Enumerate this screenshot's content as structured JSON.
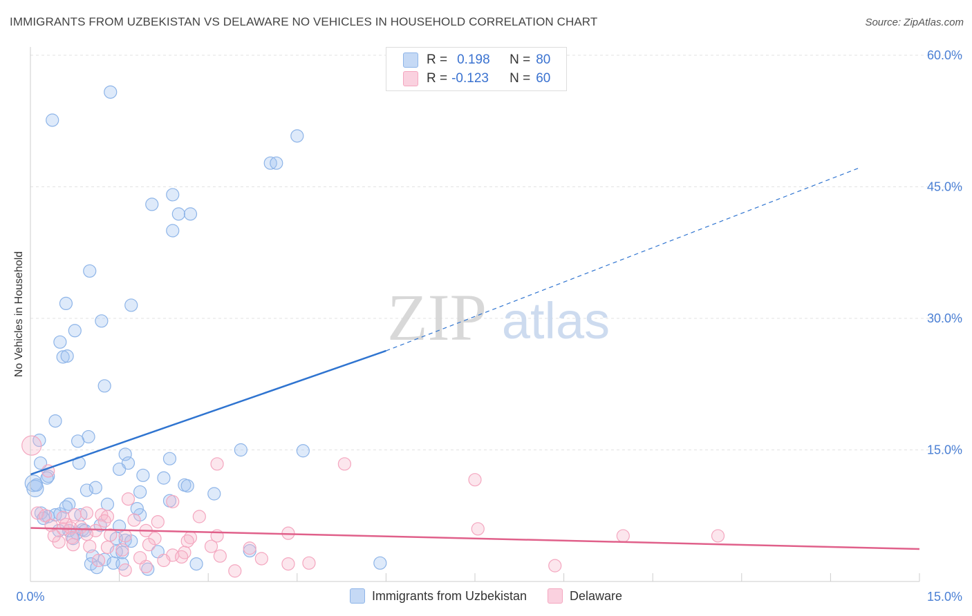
{
  "title": "IMMIGRANTS FROM UZBEKISTAN VS DELAWARE NO VEHICLES IN HOUSEHOLD CORRELATION CHART",
  "source": "Source: ZipAtlas.com",
  "watermark": {
    "zip": "ZIP",
    "atlas": "atlas"
  },
  "stats": {
    "row1": {
      "r_label": "R =",
      "r_value": "0.198",
      "n_label": "N =",
      "n_value": "80"
    },
    "row2": {
      "r_label": "R =",
      "r_value": "-0.123",
      "n_label": "N =",
      "n_value": "60"
    }
  },
  "colors": {
    "blue": "#8db4e8",
    "blue_line": "#2f74d0",
    "pink": "#f4a6bf",
    "pink_line": "#e0608a",
    "tick_text": "#4a7fd4"
  },
  "chart_data": {
    "type": "scatter",
    "ylabel": "No Vehicles in Household",
    "xlabel": "",
    "xlim": [
      0,
      15
    ],
    "ylim": [
      0,
      60
    ],
    "x_ticks": [
      "0.0%",
      "15.0%"
    ],
    "y_ticks": [
      "15.0%",
      "30.0%",
      "45.0%",
      "60.0%"
    ],
    "y_tick_values": [
      15,
      30,
      45,
      60
    ],
    "legend_placement": "bottom",
    "series": [
      {
        "name": "Immigrants from Uzbekistan",
        "color": "#8db4e8",
        "trend": {
          "x0": 0,
          "y0": 12.2,
          "x1": 6.0,
          "y1": 26.3,
          "x_dash_end": 14.0,
          "y_dash_end": 47.2
        },
        "points": [
          [
            1.35,
            55.8
          ],
          [
            0.37,
            52.6
          ],
          [
            4.5,
            50.8
          ],
          [
            4.05,
            47.7
          ],
          [
            4.15,
            47.7
          ],
          [
            2.4,
            44.1
          ],
          [
            2.05,
            43.0
          ],
          [
            2.5,
            41.9
          ],
          [
            2.7,
            41.9
          ],
          [
            2.4,
            40.0
          ],
          [
            1.0,
            35.4
          ],
          [
            0.6,
            31.7
          ],
          [
            1.7,
            31.5
          ],
          [
            1.2,
            29.7
          ],
          [
            0.75,
            28.6
          ],
          [
            0.5,
            27.3
          ],
          [
            0.55,
            25.6
          ],
          [
            0.62,
            25.7
          ],
          [
            1.25,
            22.3
          ],
          [
            0.42,
            18.3
          ],
          [
            0.98,
            16.5
          ],
          [
            0.15,
            16.1
          ],
          [
            0.8,
            16.0
          ],
          [
            0.17,
            13.5
          ],
          [
            0.82,
            13.5
          ],
          [
            1.6,
            14.5
          ],
          [
            1.65,
            13.5
          ],
          [
            2.35,
            14.0
          ],
          [
            3.55,
            15.0
          ],
          [
            4.6,
            14.9
          ],
          [
            1.5,
            12.8
          ],
          [
            0.3,
            12.0
          ],
          [
            0.28,
            11.8
          ],
          [
            1.9,
            12.1
          ],
          [
            2.25,
            11.8
          ],
          [
            0.05,
            11.2
          ],
          [
            0.08,
            10.6
          ],
          [
            0.1,
            11.0
          ],
          [
            2.6,
            11.0
          ],
          [
            2.65,
            10.9
          ],
          [
            0.95,
            10.4
          ],
          [
            1.1,
            10.7
          ],
          [
            1.85,
            10.2
          ],
          [
            3.1,
            10.0
          ],
          [
            2.35,
            9.2
          ],
          [
            0.65,
            8.8
          ],
          [
            1.3,
            8.8
          ],
          [
            0.18,
            7.8
          ],
          [
            0.3,
            7.4
          ],
          [
            0.42,
            7.6
          ],
          [
            0.5,
            7.7
          ],
          [
            0.6,
            8.5
          ],
          [
            0.85,
            7.6
          ],
          [
            0.22,
            7.2
          ],
          [
            1.85,
            7.6
          ],
          [
            1.8,
            8.3
          ],
          [
            1.5,
            6.3
          ],
          [
            1.18,
            6.4
          ],
          [
            0.65,
            5.8
          ],
          [
            0.88,
            5.9
          ],
          [
            0.92,
            5.8
          ],
          [
            0.78,
            5.5
          ],
          [
            0.48,
            5.8
          ],
          [
            1.45,
            4.9
          ],
          [
            1.6,
            4.7
          ],
          [
            1.7,
            4.6
          ],
          [
            0.72,
            4.9
          ],
          [
            1.45,
            3.4
          ],
          [
            1.55,
            3.3
          ],
          [
            1.05,
            2.9
          ],
          [
            2.15,
            3.4
          ],
          [
            3.7,
            3.5
          ],
          [
            1.25,
            2.5
          ],
          [
            1.4,
            2.1
          ],
          [
            1.55,
            2.0
          ],
          [
            1.02,
            2.0
          ],
          [
            1.12,
            1.6
          ],
          [
            1.98,
            1.4
          ],
          [
            2.8,
            2.0
          ],
          [
            5.9,
            2.1
          ]
        ]
      },
      {
        "name": "Delaware",
        "color": "#f4a6bf",
        "trend": {
          "x0": 0,
          "y0": 6.1,
          "x1": 15.0,
          "y1": 3.7
        },
        "points": [
          [
            0.02,
            15.5
          ],
          [
            3.15,
            13.4
          ],
          [
            5.3,
            13.4
          ],
          [
            7.5,
            11.6
          ],
          [
            0.3,
            12.6
          ],
          [
            1.65,
            9.4
          ],
          [
            2.4,
            9.1
          ],
          [
            0.12,
            7.8
          ],
          [
            0.25,
            7.5
          ],
          [
            0.55,
            7.3
          ],
          [
            0.75,
            7.6
          ],
          [
            0.95,
            7.8
          ],
          [
            1.2,
            7.6
          ],
          [
            1.3,
            7.4
          ],
          [
            1.75,
            7.0
          ],
          [
            2.85,
            7.4
          ],
          [
            2.15,
            6.8
          ],
          [
            0.35,
            6.4
          ],
          [
            0.55,
            6.0
          ],
          [
            0.68,
            6.1
          ],
          [
            0.85,
            6.2
          ],
          [
            1.1,
            5.8
          ],
          [
            1.35,
            5.3
          ],
          [
            1.95,
            5.8
          ],
          [
            0.95,
            5.4
          ],
          [
            0.7,
            5.0
          ],
          [
            1.6,
            5.2
          ],
          [
            2.1,
            4.9
          ],
          [
            2.7,
            5.0
          ],
          [
            2.65,
            4.6
          ],
          [
            3.15,
            5.2
          ],
          [
            4.35,
            5.5
          ],
          [
            7.55,
            6.0
          ],
          [
            10.0,
            5.2
          ],
          [
            11.6,
            5.2
          ],
          [
            0.48,
            4.5
          ],
          [
            0.72,
            4.2
          ],
          [
            1.0,
            4.0
          ],
          [
            1.3,
            3.9
          ],
          [
            1.55,
            3.6
          ],
          [
            2.4,
            3.0
          ],
          [
            2.6,
            3.3
          ],
          [
            3.05,
            4.0
          ],
          [
            3.7,
            3.8
          ],
          [
            3.2,
            2.9
          ],
          [
            3.9,
            2.6
          ],
          [
            2.25,
            2.4
          ],
          [
            1.95,
            1.7
          ],
          [
            1.6,
            1.3
          ],
          [
            3.45,
            1.2
          ],
          [
            4.35,
            2.0
          ],
          [
            4.7,
            2.1
          ],
          [
            8.85,
            1.8
          ],
          [
            1.15,
            2.4
          ],
          [
            1.85,
            2.7
          ],
          [
            2.55,
            2.8
          ],
          [
            0.6,
            6.5
          ],
          [
            1.25,
            6.9
          ],
          [
            2.0,
            4.2
          ],
          [
            0.4,
            5.2
          ]
        ]
      }
    ]
  }
}
